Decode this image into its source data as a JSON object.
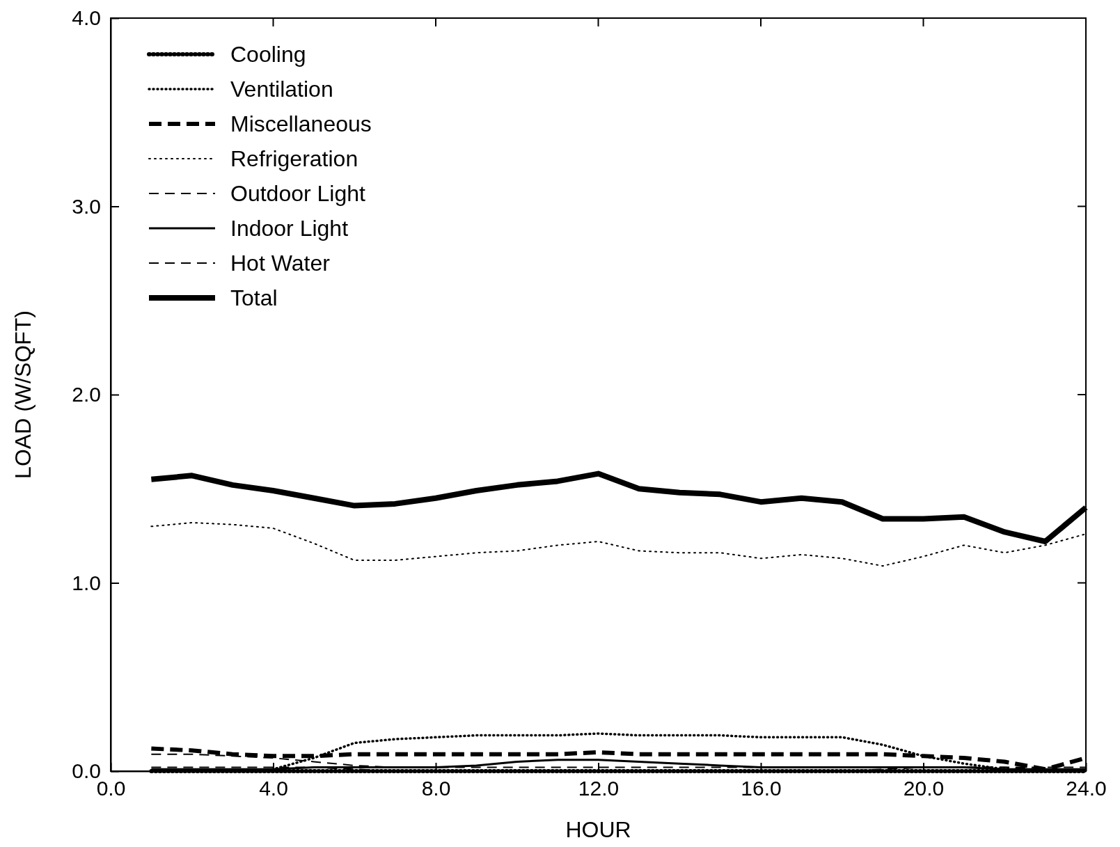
{
  "chart_data": {
    "type": "line",
    "xlabel": "HOUR",
    "ylabel": "LOAD (W/SQFT)",
    "x": [
      1,
      2,
      3,
      4,
      5,
      6,
      7,
      8,
      9,
      10,
      11,
      12,
      13,
      14,
      15,
      16,
      17,
      18,
      19,
      20,
      21,
      22,
      23,
      24
    ],
    "xlim": [
      0,
      24
    ],
    "xticks": [
      {
        "value": 0,
        "label": "0.0"
      },
      {
        "value": 4,
        "label": "4.0"
      },
      {
        "value": 8,
        "label": "8.0"
      },
      {
        "value": 12,
        "label": "12.0"
      },
      {
        "value": 16,
        "label": "16.0"
      },
      {
        "value": 20,
        "label": "20.0"
      },
      {
        "value": 24,
        "label": "24.0"
      }
    ],
    "ylim": [
      0,
      4
    ],
    "yticks": [
      {
        "value": 0,
        "label": "0.0"
      },
      {
        "value": 1,
        "label": "1.0"
      },
      {
        "value": 2,
        "label": "2.0"
      },
      {
        "value": 3,
        "label": "3.0"
      },
      {
        "value": 4,
        "label": "4.0"
      }
    ],
    "grid": false,
    "legend": "top left",
    "marker": "none",
    "series": [
      {
        "name": "Cooling",
        "color": "#000000",
        "line_style": "dotted",
        "values": [
          0,
          0,
          0,
          0,
          0,
          0,
          0,
          0,
          0,
          0,
          0,
          0,
          0,
          0,
          0,
          0,
          0,
          0,
          0,
          0,
          0,
          0,
          0,
          0
        ]
      },
      {
        "name": "Ventilation",
        "color": "#000000",
        "line_style": "dotted",
        "values": [
          0,
          0,
          0,
          0.01,
          0.07,
          0.15,
          0.17,
          0.18,
          0.19,
          0.19,
          0.19,
          0.2,
          0.19,
          0.19,
          0.19,
          0.18,
          0.18,
          0.18,
          0.14,
          0.08,
          0.04,
          0.01,
          0,
          0
        ]
      },
      {
        "name": "Miscellaneous",
        "color": "#000000",
        "line_style": "dashed",
        "values": [
          0.12,
          0.11,
          0.09,
          0.08,
          0.08,
          0.09,
          0.09,
          0.09,
          0.09,
          0.09,
          0.09,
          0.1,
          0.09,
          0.09,
          0.09,
          0.09,
          0.09,
          0.09,
          0.09,
          0.08,
          0.07,
          0.05,
          0.01,
          0.07
        ]
      },
      {
        "name": "Refrigeration",
        "color": "#000000",
        "line_style": "dotted",
        "values": [
          1.3,
          1.32,
          1.31,
          1.29,
          1.21,
          1.12,
          1.12,
          1.14,
          1.16,
          1.17,
          1.2,
          1.22,
          1.17,
          1.16,
          1.16,
          1.13,
          1.15,
          1.13,
          1.09,
          1.14,
          1.2,
          1.16,
          1.2,
          1.26
        ]
      },
      {
        "name": "Outdoor Light",
        "color": "#000000",
        "line_style": "dashed",
        "values": [
          0.02,
          0.02,
          0.02,
          0.02,
          0.02,
          0.01,
          0,
          0,
          0,
          0,
          0,
          0,
          0,
          0,
          0,
          0,
          0,
          0,
          0.01,
          0.02,
          0.02,
          0.02,
          0.02,
          0.02
        ]
      },
      {
        "name": "Indoor Light",
        "color": "#000000",
        "line_style": "solid",
        "values": [
          0.01,
          0.01,
          0.01,
          0.01,
          0.02,
          0.02,
          0.02,
          0.02,
          0.03,
          0.05,
          0.06,
          0.06,
          0.05,
          0.04,
          0.03,
          0.02,
          0.02,
          0.02,
          0.02,
          0.02,
          0.02,
          0.01,
          0.01,
          0.01
        ]
      },
      {
        "name": "Hot Water",
        "color": "#000000",
        "line_style": "dashed",
        "values": [
          0.09,
          0.09,
          0.08,
          0.07,
          0.05,
          0.03,
          0.02,
          0.02,
          0.02,
          0.02,
          0.02,
          0.02,
          0.02,
          0.02,
          0.02,
          0.02,
          0.02,
          0.02,
          0.02,
          0.02,
          0.02,
          0.02,
          0.01,
          0.01
        ]
      },
      {
        "name": "Total",
        "color": "#000000",
        "line_style": "solid",
        "values": [
          1.55,
          1.57,
          1.52,
          1.49,
          1.45,
          1.41,
          1.42,
          1.45,
          1.49,
          1.52,
          1.54,
          1.58,
          1.5,
          1.48,
          1.47,
          1.43,
          1.45,
          1.43,
          1.34,
          1.34,
          1.35,
          1.27,
          1.22,
          1.4
        ]
      }
    ]
  }
}
